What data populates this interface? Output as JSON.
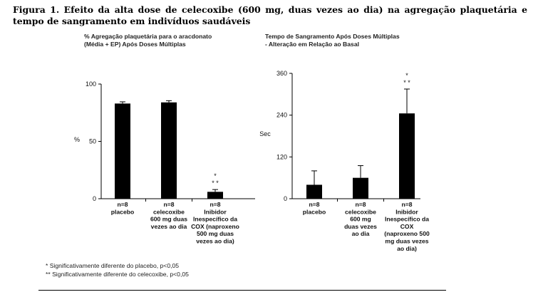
{
  "caption": "Figura 1. Efeito da alta dose de celecoxibe (600 mg, duas vezes ao dia) na agregação plaquetária e tempo de sangramento em indivíduos saudáveis",
  "footnotes": [
    "* Significativamente diferente do placebo, p<0,05",
    "** Significativamente diferente do celecoxibe, p<0,05"
  ],
  "chart_data": [
    {
      "type": "bar",
      "title": "% Agregação plaquetária para o aracdonato\n(Média + EP) Após Doses Múltiplas",
      "xlabel": "",
      "ylabel": "%",
      "ylim": [
        0,
        100
      ],
      "yticks": [
        0,
        50,
        100
      ],
      "grid": false,
      "categories": [
        "n=8\nplacebo",
        "n=8\ncelecoxibe\n600 mg duas\nvezes ao dia",
        "n=8\nInibidor\nInespecífico da\nCOX (naproxeno\n500 mg duas\nvezes ao dia)"
      ],
      "values": [
        83,
        84,
        6
      ],
      "errors": [
        1.5,
        1.5,
        2
      ],
      "annotations": [
        "",
        "",
        "*\n* *"
      ]
    },
    {
      "type": "bar",
      "title": "Tempo de Sangramento Após Doses Múltiplas\n- Alteração em Relação ao Basal",
      "xlabel": "",
      "ylabel": "Sec",
      "ylim": [
        0,
        360
      ],
      "yticks": [
        0,
        120,
        240,
        360
      ],
      "grid": false,
      "categories": [
        "n=8\nplacebo",
        "n=8\ncelecoxibe\n600 mg\nduas vezes\nao dia",
        "n=8\nInibidor\nInespecífico da\nCOX\n(naproxeno 500\nmg duas vezes\nao dia)"
      ],
      "values": [
        40,
        60,
        245
      ],
      "errors": [
        40,
        35,
        70
      ],
      "annotations": [
        "",
        "",
        "*\n* *"
      ]
    }
  ]
}
